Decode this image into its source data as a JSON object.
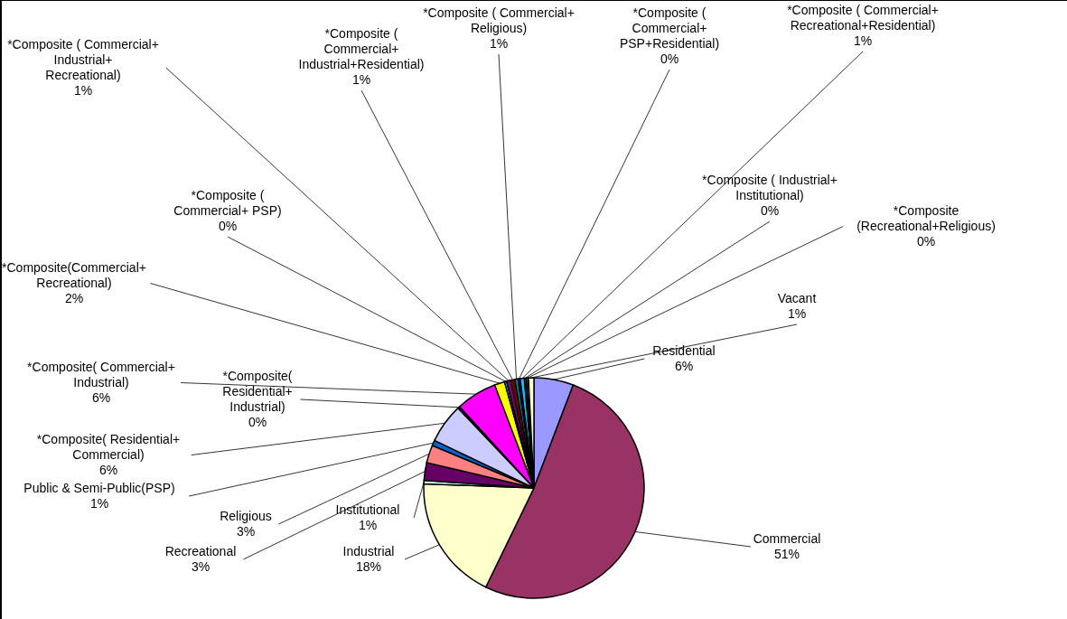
{
  "chart_data": {
    "type": "pie",
    "categories": [
      "Residential",
      "Commercial",
      "Industrial",
      "Institutional",
      "Recreational",
      "Religious",
      "Public  & Semi-Public(PSP)",
      "*Composite( Residential+ Commercial)",
      "*Composite( Residential+ Industrial)",
      "*Composite( Commercial+ Industrial)",
      "*Composite(Commercial+ Recreational)",
      "*Composite ( Commercial+ PSP)",
      "*Composite ( Commercial+ Industrial+ Recreational)",
      "*Composite ( Commercial+ Industrial+Residential)",
      "*Composite ( Commercial+ Religious)",
      "*Composite ( Commercial+ PSP+Residential)",
      "*Composite ( Commercial+ Recreational+Residential)",
      "*Composite ( Industrial+ Institutional)",
      "*Composite (Recreational+Religious)",
      "Vacant"
    ],
    "values": [
      5.8,
      51.4,
      18.4,
      0.5,
      2.6,
      2.6,
      0.8,
      5.8,
      0.3,
      6.0,
      1.5,
      0.3,
      0.6,
      0.6,
      0.5,
      0.3,
      0.6,
      0.3,
      0.3,
      0.8
    ],
    "value_labels": [
      "6%",
      "51%",
      "18%",
      "1%",
      "3%",
      "3%",
      "1%",
      "6%",
      "0%",
      "6%",
      "2%",
      "0%",
      "1%",
      "1%",
      "1%",
      "0%",
      "1%",
      "0%",
      "0%",
      "1%"
    ],
    "colors": [
      "#9999ff",
      "#993366",
      "#ffffcc",
      "#ccffff",
      "#660066",
      "#ff8080",
      "#0066cc",
      "#ccccff",
      "#000080",
      "#ff00ff",
      "#ffff00",
      "#00ffff",
      "#800080",
      "#800000",
      "#008080",
      "#0000ff",
      "#00ccff",
      "#333333",
      "#666699",
      "#ffffcc"
    ]
  }
}
